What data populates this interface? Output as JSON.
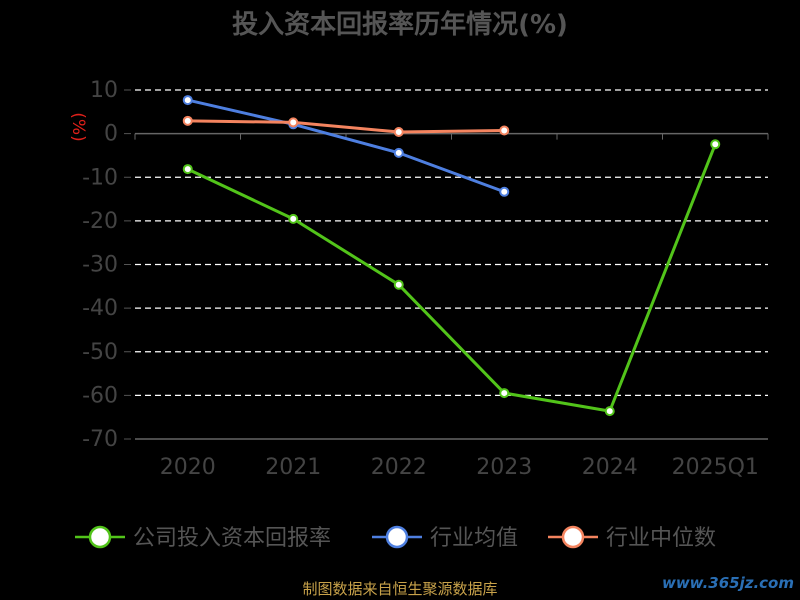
{
  "chart_data": {
    "type": "line",
    "title": "投入资本回报率历年情况(%)",
    "ylabel": "(%)",
    "xlabel": "",
    "categories": [
      "2020",
      "2021",
      "2022",
      "2023",
      "2024",
      "2025Q1"
    ],
    "ylim": [
      -70,
      10
    ],
    "yticks": [
      10,
      0,
      -10,
      -20,
      -30,
      -40,
      -50,
      -60,
      -70
    ],
    "grid": true,
    "legend_position": "bottom",
    "series": [
      {
        "name": "公司投入资本回报率",
        "color": "#52c41a",
        "values": [
          -8.13,
          -19.54,
          -34.63,
          -59.47,
          -63.61,
          -2.44
        ]
      },
      {
        "name": "行业均值",
        "color": "#4e7fe0",
        "values": [
          7.69,
          2.14,
          -4.41,
          -13.33,
          null,
          null
        ]
      },
      {
        "name": "行业中位数",
        "color": "#f4845f",
        "values": [
          2.93,
          2.58,
          0.37,
          0.72,
          null,
          null
        ]
      }
    ]
  },
  "footer": {
    "source": "制图数据来自恒生聚源数据库",
    "watermark": "www.365jz.com"
  }
}
